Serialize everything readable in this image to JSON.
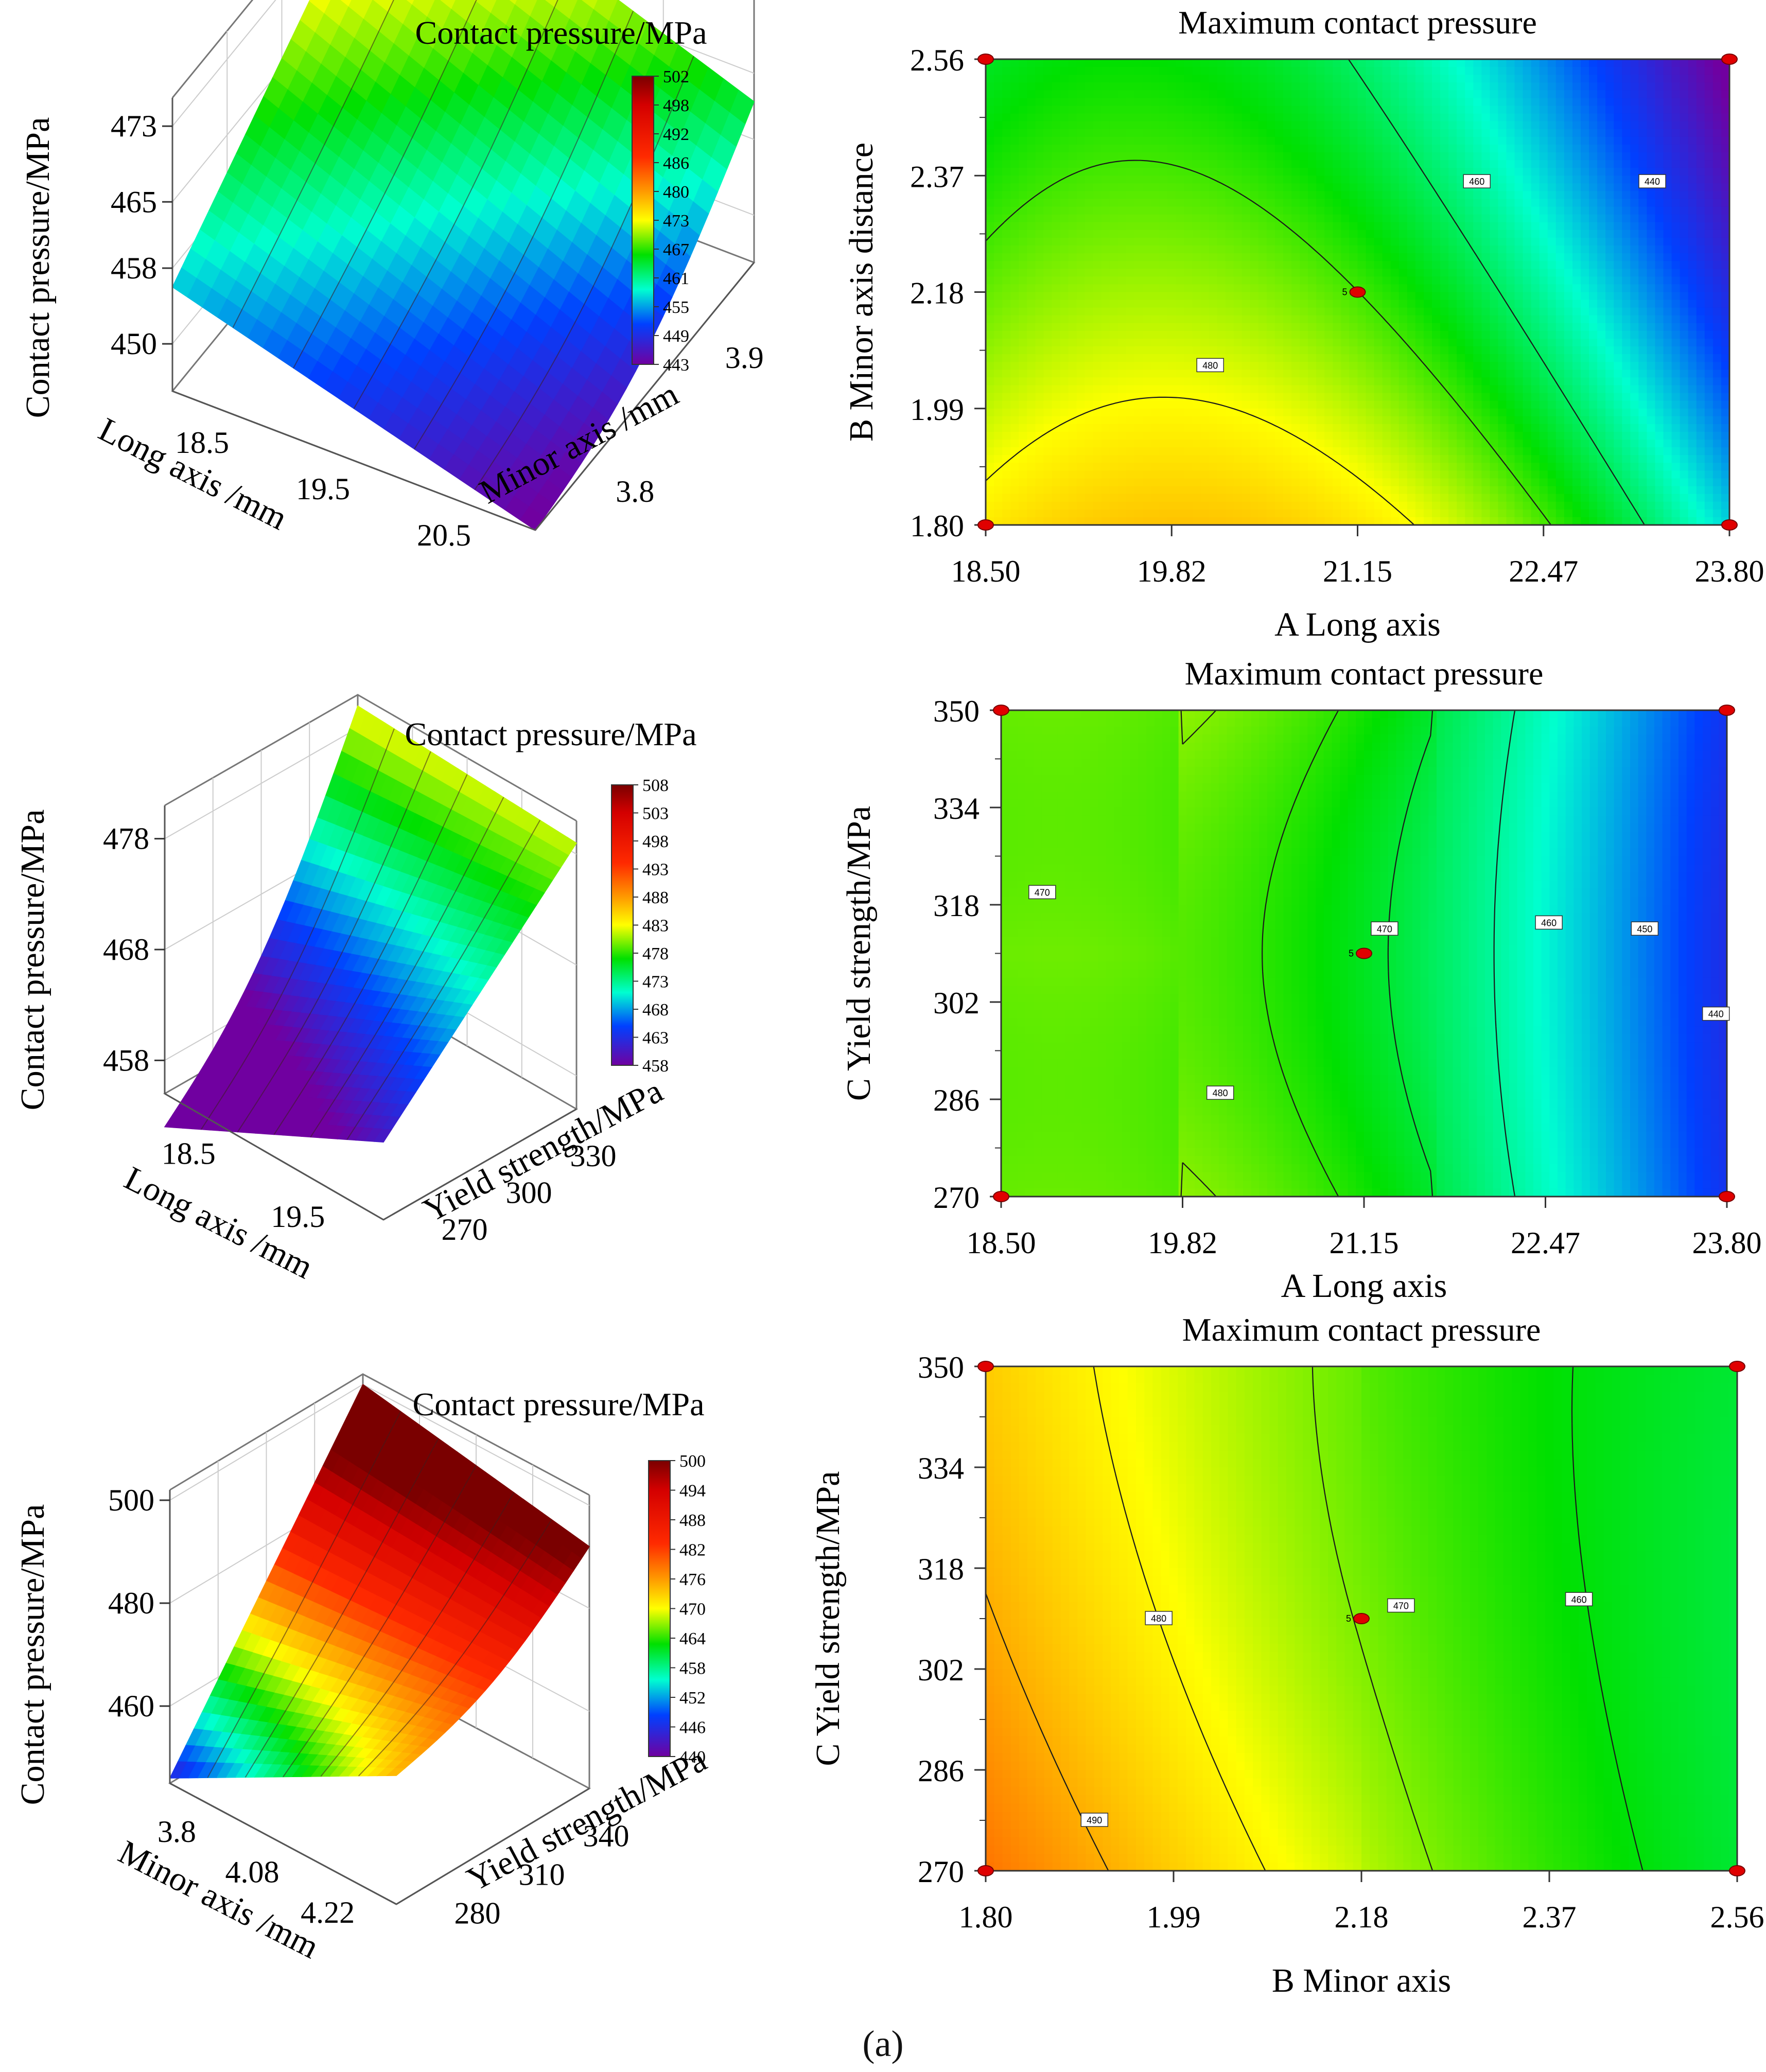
{
  "chart_data": [
    {
      "type": "surface",
      "title": "Contact pressure/MPa",
      "zlabel": "Contact pressure/MPa",
      "xlabel": "Long axis /mm",
      "ylabel": "Minor axis /mm",
      "x_ticks": [
        "18.5",
        "19.5",
        "20.5"
      ],
      "y_ticks": [
        "3.8",
        "3.9"
      ],
      "z_ticks": [
        "450",
        "458",
        "465",
        "473"
      ],
      "zlim": [
        445,
        476
      ],
      "colorbar": {
        "labels": [
          "502",
          "498",
          "492",
          "486",
          "480",
          "473",
          "467",
          "461",
          "455",
          "449",
          "443"
        ],
        "range": [
          443,
          502
        ]
      },
      "corners": {
        "far_left": 476,
        "far_right": 462,
        "near_left": 456,
        "near_right": 445
      }
    },
    {
      "type": "contour",
      "title": "Maximum contact pressure",
      "xlabel": "A  Long axis",
      "ylabel": "B Minor axis distance",
      "x_ticks": [
        "18.50",
        "19.82",
        "21.15",
        "22.47",
        "23.80"
      ],
      "y_ticks": [
        "1.80",
        "1.99",
        "2.18",
        "2.37",
        "2.56"
      ],
      "xlim": [
        18.5,
        23.8
      ],
      "ylim": [
        1.8,
        2.56
      ],
      "contour_labels": [
        {
          "text": "480",
          "x": 20.1,
          "y": 2.06
        },
        {
          "text": "460",
          "x": 22.0,
          "y": 2.36
        },
        {
          "text": "440",
          "x": 23.25,
          "y": 2.36
        }
      ],
      "center_label": "5",
      "center": [
        21.15,
        2.18
      ],
      "design_points": [
        [
          18.5,
          1.8
        ],
        [
          23.8,
          1.8
        ],
        [
          18.5,
          2.56
        ],
        [
          23.8,
          2.56
        ],
        [
          21.15,
          2.18
        ]
      ]
    },
    {
      "type": "surface",
      "title": "Contact pressure/MPa",
      "zlabel": "Contact pressure/MPa",
      "xlabel": "Long axis /mm",
      "ylabel": "Yield strength/MPa",
      "x_ticks": [
        "18.5",
        "19.5"
      ],
      "y_ticks": [
        "270",
        "300",
        "330"
      ],
      "z_ticks": [
        "458",
        "468",
        "478"
      ],
      "zlim": [
        455,
        481
      ],
      "colorbar": {
        "labels": [
          "508",
          "503",
          "498",
          "493",
          "488",
          "483",
          "478",
          "473",
          "468",
          "463",
          "458"
        ],
        "range": [
          458,
          508
        ]
      },
      "corners": {
        "far_left": 480,
        "far_right": 479,
        "near_left": 452,
        "near_right": 462
      }
    },
    {
      "type": "contour",
      "title": "Maximum contact pressure",
      "xlabel": "A   Long axis",
      "ylabel": "C  Yield strength/MPa",
      "x_ticks": [
        "18.50",
        "19.82",
        "21.15",
        "22.47",
        "23.80"
      ],
      "y_ticks": [
        "270",
        "286",
        "302",
        "318",
        "334",
        "350"
      ],
      "xlim": [
        18.5,
        23.8
      ],
      "ylim": [
        270,
        350
      ],
      "contour_labels": [
        {
          "text": "470",
          "x": 18.8,
          "y": 320
        },
        {
          "text": "480",
          "x": 20.1,
          "y": 287
        },
        {
          "text": "470",
          "x": 21.3,
          "y": 314
        },
        {
          "text": "460",
          "x": 22.5,
          "y": 315
        },
        {
          "text": "450",
          "x": 23.2,
          "y": 314
        },
        {
          "text": "440",
          "x": 23.72,
          "y": 300
        }
      ],
      "center_label": "5",
      "center": [
        21.15,
        310
      ],
      "design_points": [
        [
          18.5,
          270
        ],
        [
          23.8,
          270
        ],
        [
          18.5,
          350
        ],
        [
          23.8,
          350
        ],
        [
          21.15,
          310
        ]
      ]
    },
    {
      "type": "surface",
      "title": "Contact pressure/MPa",
      "zlabel": "Contact pressure/MPa",
      "xlabel": "Minor axis /mm",
      "ylabel": "Yield strength/MPa",
      "x_ticks": [
        "3.8",
        "4.08",
        "4.22"
      ],
      "y_ticks": [
        "280",
        "310",
        "340"
      ],
      "z_ticks": [
        "460",
        "480",
        "500"
      ],
      "zlim": [
        445,
        502
      ],
      "colorbar": {
        "labels": [
          "500",
          "494",
          "488",
          "482",
          "476",
          "470",
          "464",
          "458",
          "452",
          "446",
          "440"
        ],
        "range": [
          440,
          500
        ]
      },
      "corners": {
        "far_left": 500,
        "far_right": 492,
        "near_left": 446,
        "near_right": 470
      }
    },
    {
      "type": "contour",
      "title": "Maximum contact pressure",
      "xlabel": "B Minor axis",
      "ylabel": "C  Yield strength/MPa",
      "x_ticks": [
        "1.80",
        "1.99",
        "2.18",
        "2.37",
        "2.56"
      ],
      "y_ticks": [
        "270",
        "286",
        "302",
        "318",
        "334",
        "350"
      ],
      "xlim": [
        1.8,
        2.56
      ],
      "ylim": [
        270,
        350
      ],
      "contour_labels": [
        {
          "text": "490",
          "x": 1.91,
          "y": 278
        },
        {
          "text": "480",
          "x": 1.975,
          "y": 310
        },
        {
          "text": "470",
          "x": 2.22,
          "y": 312
        },
        {
          "text": "460",
          "x": 2.4,
          "y": 313
        }
      ],
      "center_label": "5",
      "center": [
        2.18,
        310
      ],
      "design_points": [
        [
          1.8,
          270
        ],
        [
          2.56,
          270
        ],
        [
          1.8,
          350
        ],
        [
          2.56,
          350
        ],
        [
          2.18,
          310
        ]
      ]
    }
  ],
  "caption": "(a)"
}
